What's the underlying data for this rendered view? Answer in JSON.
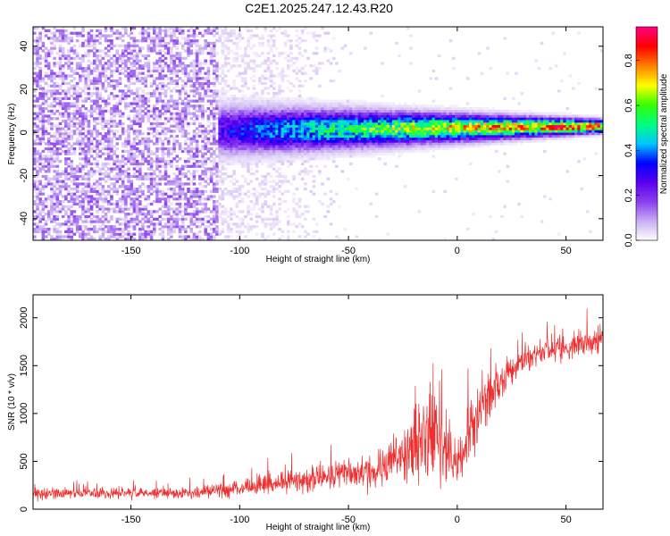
{
  "title": "C2E1.2025.247.12.43.R20",
  "chart_data": [
    {
      "type": "heatmap",
      "xlabel": "Height of straight line (km)",
      "ylabel": "Frequency (Hz)",
      "xlim": [
        -195,
        67
      ],
      "ylim": [
        -50,
        49
      ],
      "xticks": [
        -150,
        -100,
        -50,
        0,
        50
      ],
      "yticks": [
        -40,
        -20,
        0,
        20,
        40
      ],
      "colorbar": {
        "label": "Normalized spectral amplitude",
        "range": [
          0.0,
          0.95
        ],
        "ticks": [
          0.0,
          0.2,
          0.4,
          0.6,
          0.8
        ],
        "colormap": [
          "#ffffff",
          "#c9b0f2",
          "#8b3ff0",
          "#5a00ee",
          "#0000ff",
          "#00c8ff",
          "#00ff80",
          "#33ff00",
          "#ffff00",
          "#ff8000",
          "#ff0000",
          "#ff0080"
        ]
      },
      "features": [
        {
          "name": "noise region",
          "x_range": [
            -195,
            -110
          ],
          "freq_range": [
            -50,
            49
          ],
          "amplitude": 0.1
        },
        {
          "name": "fading noise",
          "x_range": [
            -110,
            -45
          ],
          "freq_range": [
            -50,
            49
          ],
          "amplitude": 0.03
        },
        {
          "name": "signal band",
          "x_range": [
            -110,
            67
          ],
          "center_freq": [
            1,
            3
          ],
          "half_width_hz": [
            12,
            3
          ],
          "peak_amplitude": [
            0.25,
            0.85
          ]
        }
      ]
    },
    {
      "type": "line",
      "xlabel": "Height of straight line (km)",
      "ylabel": "SNR (10 * v/v)",
      "xlim": [
        -195,
        67
      ],
      "ylim": [
        0,
        2240
      ],
      "xticks": [
        -150,
        -100,
        -50,
        0,
        50
      ],
      "yticks": [
        0,
        500,
        1000,
        1500,
        2000
      ],
      "series": [
        {
          "name": "SNR",
          "color": "#ef2f2f",
          "x": [
            -195,
            -180,
            -160,
            -140,
            -120,
            -100,
            -90,
            -80,
            -70,
            -60,
            -50,
            -40,
            -30,
            -20,
            -15,
            -10,
            -7,
            -5,
            -3,
            0,
            5,
            10,
            15,
            20,
            25,
            30,
            40,
            50,
            60,
            67
          ],
          "mean": [
            160,
            165,
            170,
            170,
            180,
            220,
            260,
            290,
            320,
            340,
            360,
            400,
            480,
            650,
            720,
            700,
            650,
            600,
            500,
            450,
            800,
            1000,
            1200,
            1300,
            1450,
            1550,
            1650,
            1700,
            1750,
            1780
          ],
          "spread": [
            90,
            90,
            90,
            90,
            100,
            140,
            170,
            190,
            200,
            210,
            230,
            300,
            400,
            550,
            600,
            600,
            550,
            550,
            500,
            420,
            500,
            500,
            400,
            320,
            260,
            220,
            200,
            200,
            230,
            230
          ]
        }
      ]
    }
  ]
}
